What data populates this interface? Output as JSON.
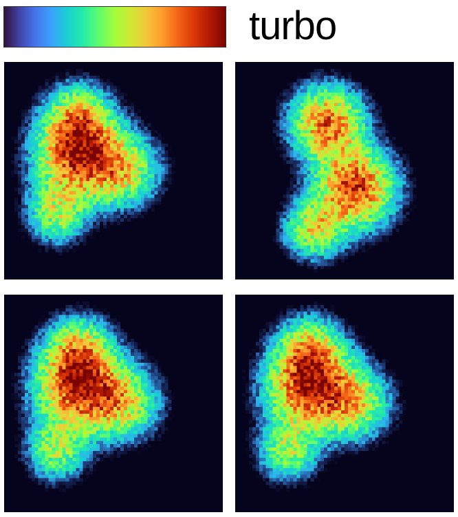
{
  "chart_data": {
    "type": "heatmap",
    "colormap": {
      "name": "turbo",
      "stops": [
        "#30123b",
        "#4145ab",
        "#4675ed",
        "#39a2fc",
        "#1bcfd4",
        "#24eca6",
        "#61fc6c",
        "#a4fc3b",
        "#d1e834",
        "#f3c63a",
        "#fe9b2d",
        "#f36315",
        "#d93806",
        "#b11901",
        "#7a0402"
      ]
    },
    "panel_background": "#06031c",
    "panels": [
      {
        "name": "top-left",
        "blobs": [
          {
            "x": 0.34,
            "y": 0.43,
            "s": 0.13,
            "w": 1.0
          },
          {
            "x": 0.34,
            "y": 0.25,
            "s": 0.1,
            "w": 0.55
          },
          {
            "x": 0.55,
            "y": 0.5,
            "s": 0.11,
            "w": 0.55
          },
          {
            "x": 0.24,
            "y": 0.7,
            "s": 0.09,
            "w": 0.5
          }
        ]
      },
      {
        "name": "top-right",
        "blobs": [
          {
            "x": 0.42,
            "y": 0.28,
            "s": 0.11,
            "w": 0.9
          },
          {
            "x": 0.55,
            "y": 0.58,
            "s": 0.12,
            "w": 1.0
          },
          {
            "x": 0.36,
            "y": 0.77,
            "s": 0.09,
            "w": 0.6
          }
        ]
      },
      {
        "name": "bottom-left",
        "blobs": [
          {
            "x": 0.34,
            "y": 0.43,
            "s": 0.13,
            "w": 1.0
          },
          {
            "x": 0.34,
            "y": 0.25,
            "s": 0.1,
            "w": 0.55
          },
          {
            "x": 0.55,
            "y": 0.5,
            "s": 0.11,
            "w": 0.55
          },
          {
            "x": 0.24,
            "y": 0.72,
            "s": 0.09,
            "w": 0.5
          }
        ]
      },
      {
        "name": "bottom-right",
        "blobs": [
          {
            "x": 0.34,
            "y": 0.43,
            "s": 0.13,
            "w": 1.0
          },
          {
            "x": 0.34,
            "y": 0.25,
            "s": 0.1,
            "w": 0.55
          },
          {
            "x": 0.55,
            "y": 0.5,
            "s": 0.11,
            "w": 0.55
          },
          {
            "x": 0.24,
            "y": 0.72,
            "s": 0.09,
            "w": 0.5
          }
        ]
      }
    ]
  },
  "labels": {
    "colormap_name": "turbo"
  }
}
